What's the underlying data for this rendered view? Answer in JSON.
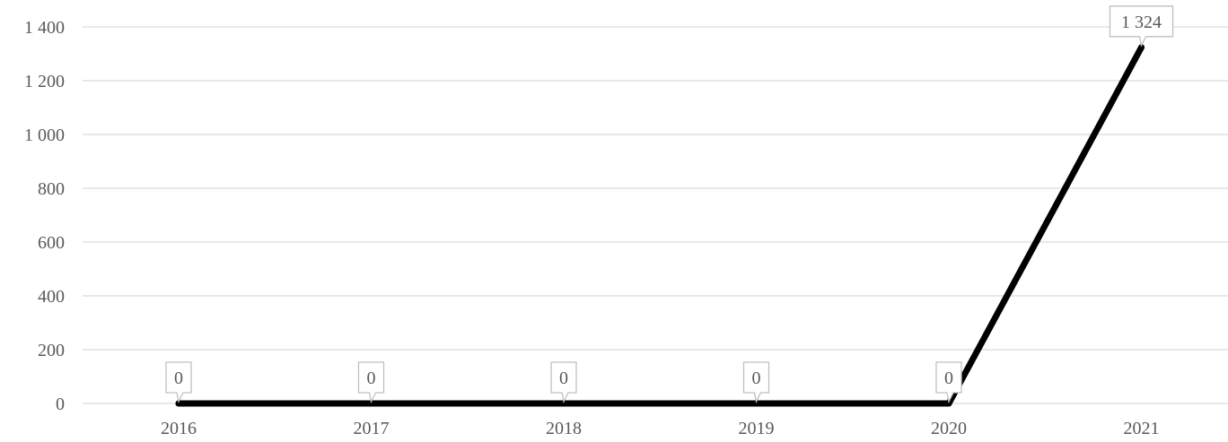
{
  "chart_data": {
    "type": "line",
    "title": "",
    "xlabel": "",
    "ylabel": "",
    "categories": [
      "2016",
      "2017",
      "2018",
      "2019",
      "2020",
      "2021"
    ],
    "series": [
      {
        "values": [
          0,
          0,
          0,
          0,
          0,
          1324
        ]
      }
    ],
    "data_labels": [
      "0",
      "0",
      "0",
      "0",
      "0",
      "1 324"
    ],
    "ylim": [
      0,
      1400
    ],
    "yticks": [
      0,
      200,
      400,
      600,
      800,
      1000,
      1200,
      1400
    ],
    "ytick_labels": [
      "0",
      "200",
      "400",
      "600",
      "800",
      "1 000",
      "1 200",
      "1 400"
    ],
    "grid": true,
    "legend": "none",
    "line_color": "#000000",
    "grid_color": "#d9d9d9"
  }
}
